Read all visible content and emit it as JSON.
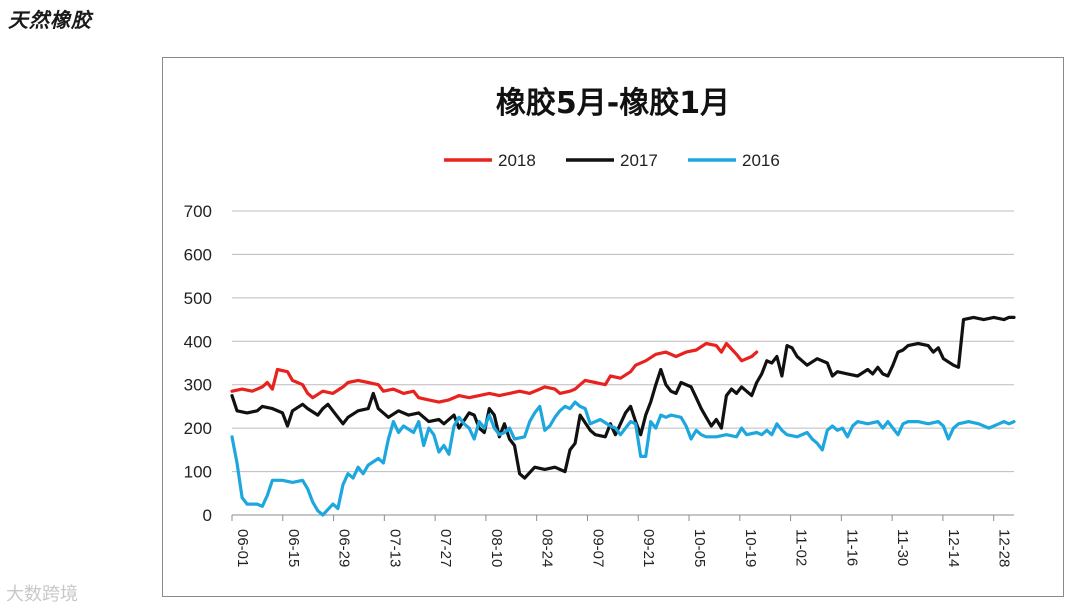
{
  "page": {
    "corner_title": "天然橡胶",
    "watermark": "大数跨境"
  },
  "chart_data": {
    "type": "line",
    "title": "橡胶5月-橡胶1月",
    "xlabel": "",
    "ylabel": "",
    "ylim": [
      0,
      700
    ],
    "yticks": [
      0,
      100,
      200,
      300,
      400,
      500,
      600,
      700
    ],
    "grid": true,
    "legend": "top",
    "x_tick_labels": [
      "06-01",
      "06-15",
      "06-29",
      "07-13",
      "07-27",
      "08-10",
      "08-24",
      "09-07",
      "09-21",
      "10-05",
      "10-19",
      "11-02",
      "11-16",
      "11-30",
      "12-14",
      "12-28"
    ],
    "x_count": 156,
    "series": [
      {
        "name": "2018",
        "color": "#e8231f",
        "points": [
          [
            0,
            285
          ],
          [
            2,
            290
          ],
          [
            4,
            285
          ],
          [
            6,
            295
          ],
          [
            7,
            305
          ],
          [
            8,
            290
          ],
          [
            9,
            335
          ],
          [
            11,
            330
          ],
          [
            12,
            310
          ],
          [
            14,
            300
          ],
          [
            15,
            280
          ],
          [
            16,
            270
          ],
          [
            18,
            285
          ],
          [
            20,
            280
          ],
          [
            22,
            295
          ],
          [
            23,
            305
          ],
          [
            25,
            310
          ],
          [
            27,
            305
          ],
          [
            29,
            300
          ],
          [
            30,
            285
          ],
          [
            32,
            290
          ],
          [
            34,
            280
          ],
          [
            36,
            285
          ],
          [
            37,
            270
          ],
          [
            39,
            265
          ],
          [
            41,
            260
          ],
          [
            43,
            265
          ],
          [
            45,
            275
          ],
          [
            47,
            270
          ],
          [
            49,
            275
          ],
          [
            51,
            280
          ],
          [
            53,
            275
          ],
          [
            55,
            280
          ],
          [
            57,
            285
          ],
          [
            59,
            280
          ],
          [
            61,
            290
          ],
          [
            62,
            295
          ],
          [
            64,
            290
          ],
          [
            65,
            280
          ],
          [
            67,
            285
          ],
          [
            68,
            290
          ],
          [
            69,
            300
          ],
          [
            70,
            310
          ],
          [
            72,
            305
          ],
          [
            74,
            300
          ],
          [
            75,
            320
          ],
          [
            77,
            315
          ],
          [
            79,
            330
          ],
          [
            80,
            345
          ],
          [
            82,
            355
          ],
          [
            84,
            370
          ],
          [
            86,
            375
          ],
          [
            88,
            365
          ],
          [
            90,
            375
          ],
          [
            92,
            380
          ],
          [
            94,
            395
          ],
          [
            96,
            390
          ],
          [
            97,
            375
          ],
          [
            98,
            395
          ],
          [
            100,
            370
          ],
          [
            101,
            355
          ],
          [
            103,
            365
          ],
          [
            104,
            375
          ]
        ]
      },
      {
        "name": "2017",
        "color": "#111111",
        "points": [
          [
            0,
            275
          ],
          [
            1,
            240
          ],
          [
            3,
            235
          ],
          [
            5,
            240
          ],
          [
            6,
            250
          ],
          [
            8,
            245
          ],
          [
            10,
            235
          ],
          [
            11,
            205
          ],
          [
            12,
            240
          ],
          [
            14,
            255
          ],
          [
            15,
            245
          ],
          [
            17,
            230
          ],
          [
            18,
            245
          ],
          [
            19,
            255
          ],
          [
            20,
            240
          ],
          [
            22,
            210
          ],
          [
            23,
            225
          ],
          [
            25,
            240
          ],
          [
            27,
            245
          ],
          [
            28,
            280
          ],
          [
            29,
            245
          ],
          [
            31,
            225
          ],
          [
            33,
            240
          ],
          [
            35,
            230
          ],
          [
            37,
            235
          ],
          [
            39,
            215
          ],
          [
            41,
            220
          ],
          [
            42,
            210
          ],
          [
            44,
            230
          ],
          [
            45,
            200
          ],
          [
            47,
            235
          ],
          [
            48,
            230
          ],
          [
            49,
            200
          ],
          [
            50,
            190
          ],
          [
            51,
            245
          ],
          [
            52,
            230
          ],
          [
            53,
            180
          ],
          [
            54,
            210
          ],
          [
            55,
            175
          ],
          [
            56,
            160
          ],
          [
            57,
            95
          ],
          [
            58,
            85
          ],
          [
            60,
            110
          ],
          [
            62,
            105
          ],
          [
            64,
            110
          ],
          [
            66,
            100
          ],
          [
            67,
            150
          ],
          [
            68,
            165
          ],
          [
            69,
            230
          ],
          [
            71,
            195
          ],
          [
            72,
            185
          ],
          [
            74,
            180
          ],
          [
            75,
            210
          ],
          [
            76,
            185
          ],
          [
            78,
            235
          ],
          [
            79,
            250
          ],
          [
            80,
            215
          ],
          [
            81,
            185
          ],
          [
            82,
            230
          ],
          [
            83,
            260
          ],
          [
            84,
            300
          ],
          [
            85,
            335
          ],
          [
            86,
            300
          ],
          [
            87,
            285
          ],
          [
            88,
            280
          ],
          [
            89,
            305
          ],
          [
            91,
            295
          ],
          [
            92,
            270
          ],
          [
            93,
            245
          ],
          [
            94,
            225
          ],
          [
            95,
            205
          ],
          [
            96,
            220
          ],
          [
            97,
            200
          ],
          [
            98,
            275
          ],
          [
            99,
            290
          ],
          [
            100,
            280
          ],
          [
            101,
            295
          ],
          [
            103,
            275
          ],
          [
            104,
            305
          ],
          [
            105,
            325
          ],
          [
            106,
            355
          ],
          [
            107,
            350
          ],
          [
            108,
            365
          ],
          [
            109,
            320
          ],
          [
            110,
            390
          ],
          [
            111,
            385
          ],
          [
            112,
            365
          ],
          [
            113,
            355
          ],
          [
            114,
            345
          ],
          [
            116,
            360
          ],
          [
            118,
            350
          ],
          [
            119,
            320
          ],
          [
            120,
            330
          ],
          [
            122,
            325
          ],
          [
            124,
            320
          ],
          [
            126,
            335
          ],
          [
            127,
            325
          ],
          [
            128,
            340
          ],
          [
            129,
            325
          ],
          [
            130,
            320
          ],
          [
            131,
            345
          ],
          [
            132,
            375
          ],
          [
            133,
            380
          ],
          [
            134,
            390
          ],
          [
            136,
            395
          ],
          [
            138,
            390
          ],
          [
            139,
            375
          ],
          [
            140,
            385
          ],
          [
            141,
            360
          ],
          [
            143,
            345
          ],
          [
            144,
            340
          ],
          [
            145,
            450
          ],
          [
            147,
            455
          ],
          [
            149,
            450
          ],
          [
            151,
            455
          ],
          [
            153,
            450
          ],
          [
            154,
            455
          ],
          [
            155,
            455
          ]
        ]
      },
      {
        "name": "2016",
        "color": "#1ea7df",
        "points": [
          [
            0,
            180
          ],
          [
            1,
            120
          ],
          [
            2,
            40
          ],
          [
            3,
            25
          ],
          [
            5,
            25
          ],
          [
            6,
            20
          ],
          [
            7,
            45
          ],
          [
            8,
            80
          ],
          [
            10,
            80
          ],
          [
            12,
            75
          ],
          [
            14,
            80
          ],
          [
            15,
            60
          ],
          [
            16,
            30
          ],
          [
            17,
            10
          ],
          [
            18,
            0
          ],
          [
            20,
            25
          ],
          [
            21,
            15
          ],
          [
            22,
            70
          ],
          [
            23,
            95
          ],
          [
            24,
            85
          ],
          [
            25,
            110
          ],
          [
            26,
            95
          ],
          [
            27,
            115
          ],
          [
            29,
            130
          ],
          [
            30,
            120
          ],
          [
            31,
            175
          ],
          [
            32,
            215
          ],
          [
            33,
            190
          ],
          [
            34,
            205
          ],
          [
            36,
            190
          ],
          [
            37,
            215
          ],
          [
            38,
            160
          ],
          [
            39,
            200
          ],
          [
            40,
            185
          ],
          [
            41,
            145
          ],
          [
            42,
            160
          ],
          [
            43,
            140
          ],
          [
            44,
            205
          ],
          [
            45,
            225
          ],
          [
            46,
            210
          ],
          [
            47,
            200
          ],
          [
            48,
            175
          ],
          [
            49,
            215
          ],
          [
            50,
            200
          ],
          [
            51,
            230
          ],
          [
            52,
            200
          ],
          [
            53,
            185
          ],
          [
            54,
            190
          ],
          [
            55,
            200
          ],
          [
            56,
            175
          ],
          [
            58,
            180
          ],
          [
            59,
            215
          ],
          [
            60,
            235
          ],
          [
            61,
            250
          ],
          [
            62,
            195
          ],
          [
            63,
            205
          ],
          [
            64,
            225
          ],
          [
            65,
            240
          ],
          [
            66,
            250
          ],
          [
            67,
            245
          ],
          [
            68,
            260
          ],
          [
            69,
            250
          ],
          [
            70,
            245
          ],
          [
            71,
            210
          ],
          [
            73,
            220
          ],
          [
            75,
            205
          ],
          [
            76,
            200
          ],
          [
            77,
            185
          ],
          [
            78,
            200
          ],
          [
            79,
            215
          ],
          [
            80,
            210
          ],
          [
            81,
            135
          ],
          [
            82,
            135
          ],
          [
            83,
            215
          ],
          [
            84,
            200
          ],
          [
            85,
            230
          ],
          [
            86,
            225
          ],
          [
            87,
            230
          ],
          [
            89,
            225
          ],
          [
            90,
            205
          ],
          [
            91,
            175
          ],
          [
            92,
            195
          ],
          [
            93,
            185
          ],
          [
            94,
            180
          ],
          [
            96,
            180
          ],
          [
            98,
            185
          ],
          [
            100,
            180
          ],
          [
            101,
            200
          ],
          [
            102,
            185
          ],
          [
            104,
            190
          ],
          [
            105,
            185
          ],
          [
            106,
            195
          ],
          [
            107,
            185
          ],
          [
            108,
            210
          ],
          [
            109,
            195
          ],
          [
            110,
            185
          ],
          [
            112,
            180
          ],
          [
            114,
            190
          ],
          [
            115,
            175
          ],
          [
            116,
            165
          ],
          [
            117,
            150
          ],
          [
            118,
            195
          ],
          [
            119,
            205
          ],
          [
            120,
            195
          ],
          [
            121,
            200
          ],
          [
            122,
            180
          ],
          [
            123,
            205
          ],
          [
            124,
            215
          ],
          [
            126,
            210
          ],
          [
            128,
            215
          ],
          [
            129,
            200
          ],
          [
            130,
            215
          ],
          [
            131,
            200
          ],
          [
            132,
            185
          ],
          [
            133,
            210
          ],
          [
            134,
            215
          ],
          [
            136,
            215
          ],
          [
            138,
            210
          ],
          [
            140,
            215
          ],
          [
            141,
            205
          ],
          [
            142,
            175
          ],
          [
            143,
            200
          ],
          [
            144,
            210
          ],
          [
            146,
            215
          ],
          [
            148,
            210
          ],
          [
            150,
            200
          ],
          [
            151,
            205
          ],
          [
            152,
            210
          ],
          [
            153,
            215
          ],
          [
            154,
            210
          ],
          [
            155,
            215
          ]
        ]
      }
    ]
  }
}
